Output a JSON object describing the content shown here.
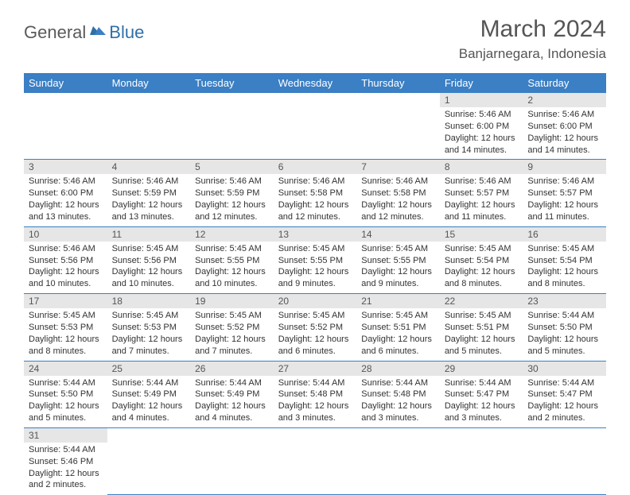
{
  "logo": {
    "general": "General",
    "blue": "Blue"
  },
  "title": "March 2024",
  "location": "Banjarnegara, Indonesia",
  "colors": {
    "header_bg": "#3b7fc4",
    "header_text": "#ffffff",
    "daynum_bg": "#e6e6e6",
    "body_text": "#333333",
    "logo_gray": "#5a5a5a",
    "logo_blue": "#2f6fa8"
  },
  "weekdays": [
    "Sunday",
    "Monday",
    "Tuesday",
    "Wednesday",
    "Thursday",
    "Friday",
    "Saturday"
  ],
  "weeks": [
    [
      null,
      null,
      null,
      null,
      null,
      {
        "n": "1",
        "sr": "5:46 AM",
        "ss": "6:00 PM",
        "dl": "12 hours and 14 minutes."
      },
      {
        "n": "2",
        "sr": "5:46 AM",
        "ss": "6:00 PM",
        "dl": "12 hours and 14 minutes."
      }
    ],
    [
      {
        "n": "3",
        "sr": "5:46 AM",
        "ss": "6:00 PM",
        "dl": "12 hours and 13 minutes."
      },
      {
        "n": "4",
        "sr": "5:46 AM",
        "ss": "5:59 PM",
        "dl": "12 hours and 13 minutes."
      },
      {
        "n": "5",
        "sr": "5:46 AM",
        "ss": "5:59 PM",
        "dl": "12 hours and 12 minutes."
      },
      {
        "n": "6",
        "sr": "5:46 AM",
        "ss": "5:58 PM",
        "dl": "12 hours and 12 minutes."
      },
      {
        "n": "7",
        "sr": "5:46 AM",
        "ss": "5:58 PM",
        "dl": "12 hours and 12 minutes."
      },
      {
        "n": "8",
        "sr": "5:46 AM",
        "ss": "5:57 PM",
        "dl": "12 hours and 11 minutes."
      },
      {
        "n": "9",
        "sr": "5:46 AM",
        "ss": "5:57 PM",
        "dl": "12 hours and 11 minutes."
      }
    ],
    [
      {
        "n": "10",
        "sr": "5:46 AM",
        "ss": "5:56 PM",
        "dl": "12 hours and 10 minutes."
      },
      {
        "n": "11",
        "sr": "5:45 AM",
        "ss": "5:56 PM",
        "dl": "12 hours and 10 minutes."
      },
      {
        "n": "12",
        "sr": "5:45 AM",
        "ss": "5:55 PM",
        "dl": "12 hours and 10 minutes."
      },
      {
        "n": "13",
        "sr": "5:45 AM",
        "ss": "5:55 PM",
        "dl": "12 hours and 9 minutes."
      },
      {
        "n": "14",
        "sr": "5:45 AM",
        "ss": "5:55 PM",
        "dl": "12 hours and 9 minutes."
      },
      {
        "n": "15",
        "sr": "5:45 AM",
        "ss": "5:54 PM",
        "dl": "12 hours and 8 minutes."
      },
      {
        "n": "16",
        "sr": "5:45 AM",
        "ss": "5:54 PM",
        "dl": "12 hours and 8 minutes."
      }
    ],
    [
      {
        "n": "17",
        "sr": "5:45 AM",
        "ss": "5:53 PM",
        "dl": "12 hours and 8 minutes."
      },
      {
        "n": "18",
        "sr": "5:45 AM",
        "ss": "5:53 PM",
        "dl": "12 hours and 7 minutes."
      },
      {
        "n": "19",
        "sr": "5:45 AM",
        "ss": "5:52 PM",
        "dl": "12 hours and 7 minutes."
      },
      {
        "n": "20",
        "sr": "5:45 AM",
        "ss": "5:52 PM",
        "dl": "12 hours and 6 minutes."
      },
      {
        "n": "21",
        "sr": "5:45 AM",
        "ss": "5:51 PM",
        "dl": "12 hours and 6 minutes."
      },
      {
        "n": "22",
        "sr": "5:45 AM",
        "ss": "5:51 PM",
        "dl": "12 hours and 5 minutes."
      },
      {
        "n": "23",
        "sr": "5:44 AM",
        "ss": "5:50 PM",
        "dl": "12 hours and 5 minutes."
      }
    ],
    [
      {
        "n": "24",
        "sr": "5:44 AM",
        "ss": "5:50 PM",
        "dl": "12 hours and 5 minutes."
      },
      {
        "n": "25",
        "sr": "5:44 AM",
        "ss": "5:49 PM",
        "dl": "12 hours and 4 minutes."
      },
      {
        "n": "26",
        "sr": "5:44 AM",
        "ss": "5:49 PM",
        "dl": "12 hours and 4 minutes."
      },
      {
        "n": "27",
        "sr": "5:44 AM",
        "ss": "5:48 PM",
        "dl": "12 hours and 3 minutes."
      },
      {
        "n": "28",
        "sr": "5:44 AM",
        "ss": "5:48 PM",
        "dl": "12 hours and 3 minutes."
      },
      {
        "n": "29",
        "sr": "5:44 AM",
        "ss": "5:47 PM",
        "dl": "12 hours and 3 minutes."
      },
      {
        "n": "30",
        "sr": "5:44 AM",
        "ss": "5:47 PM",
        "dl": "12 hours and 2 minutes."
      }
    ],
    [
      {
        "n": "31",
        "sr": "5:44 AM",
        "ss": "5:46 PM",
        "dl": "12 hours and 2 minutes."
      },
      null,
      null,
      null,
      null,
      null,
      null
    ]
  ]
}
